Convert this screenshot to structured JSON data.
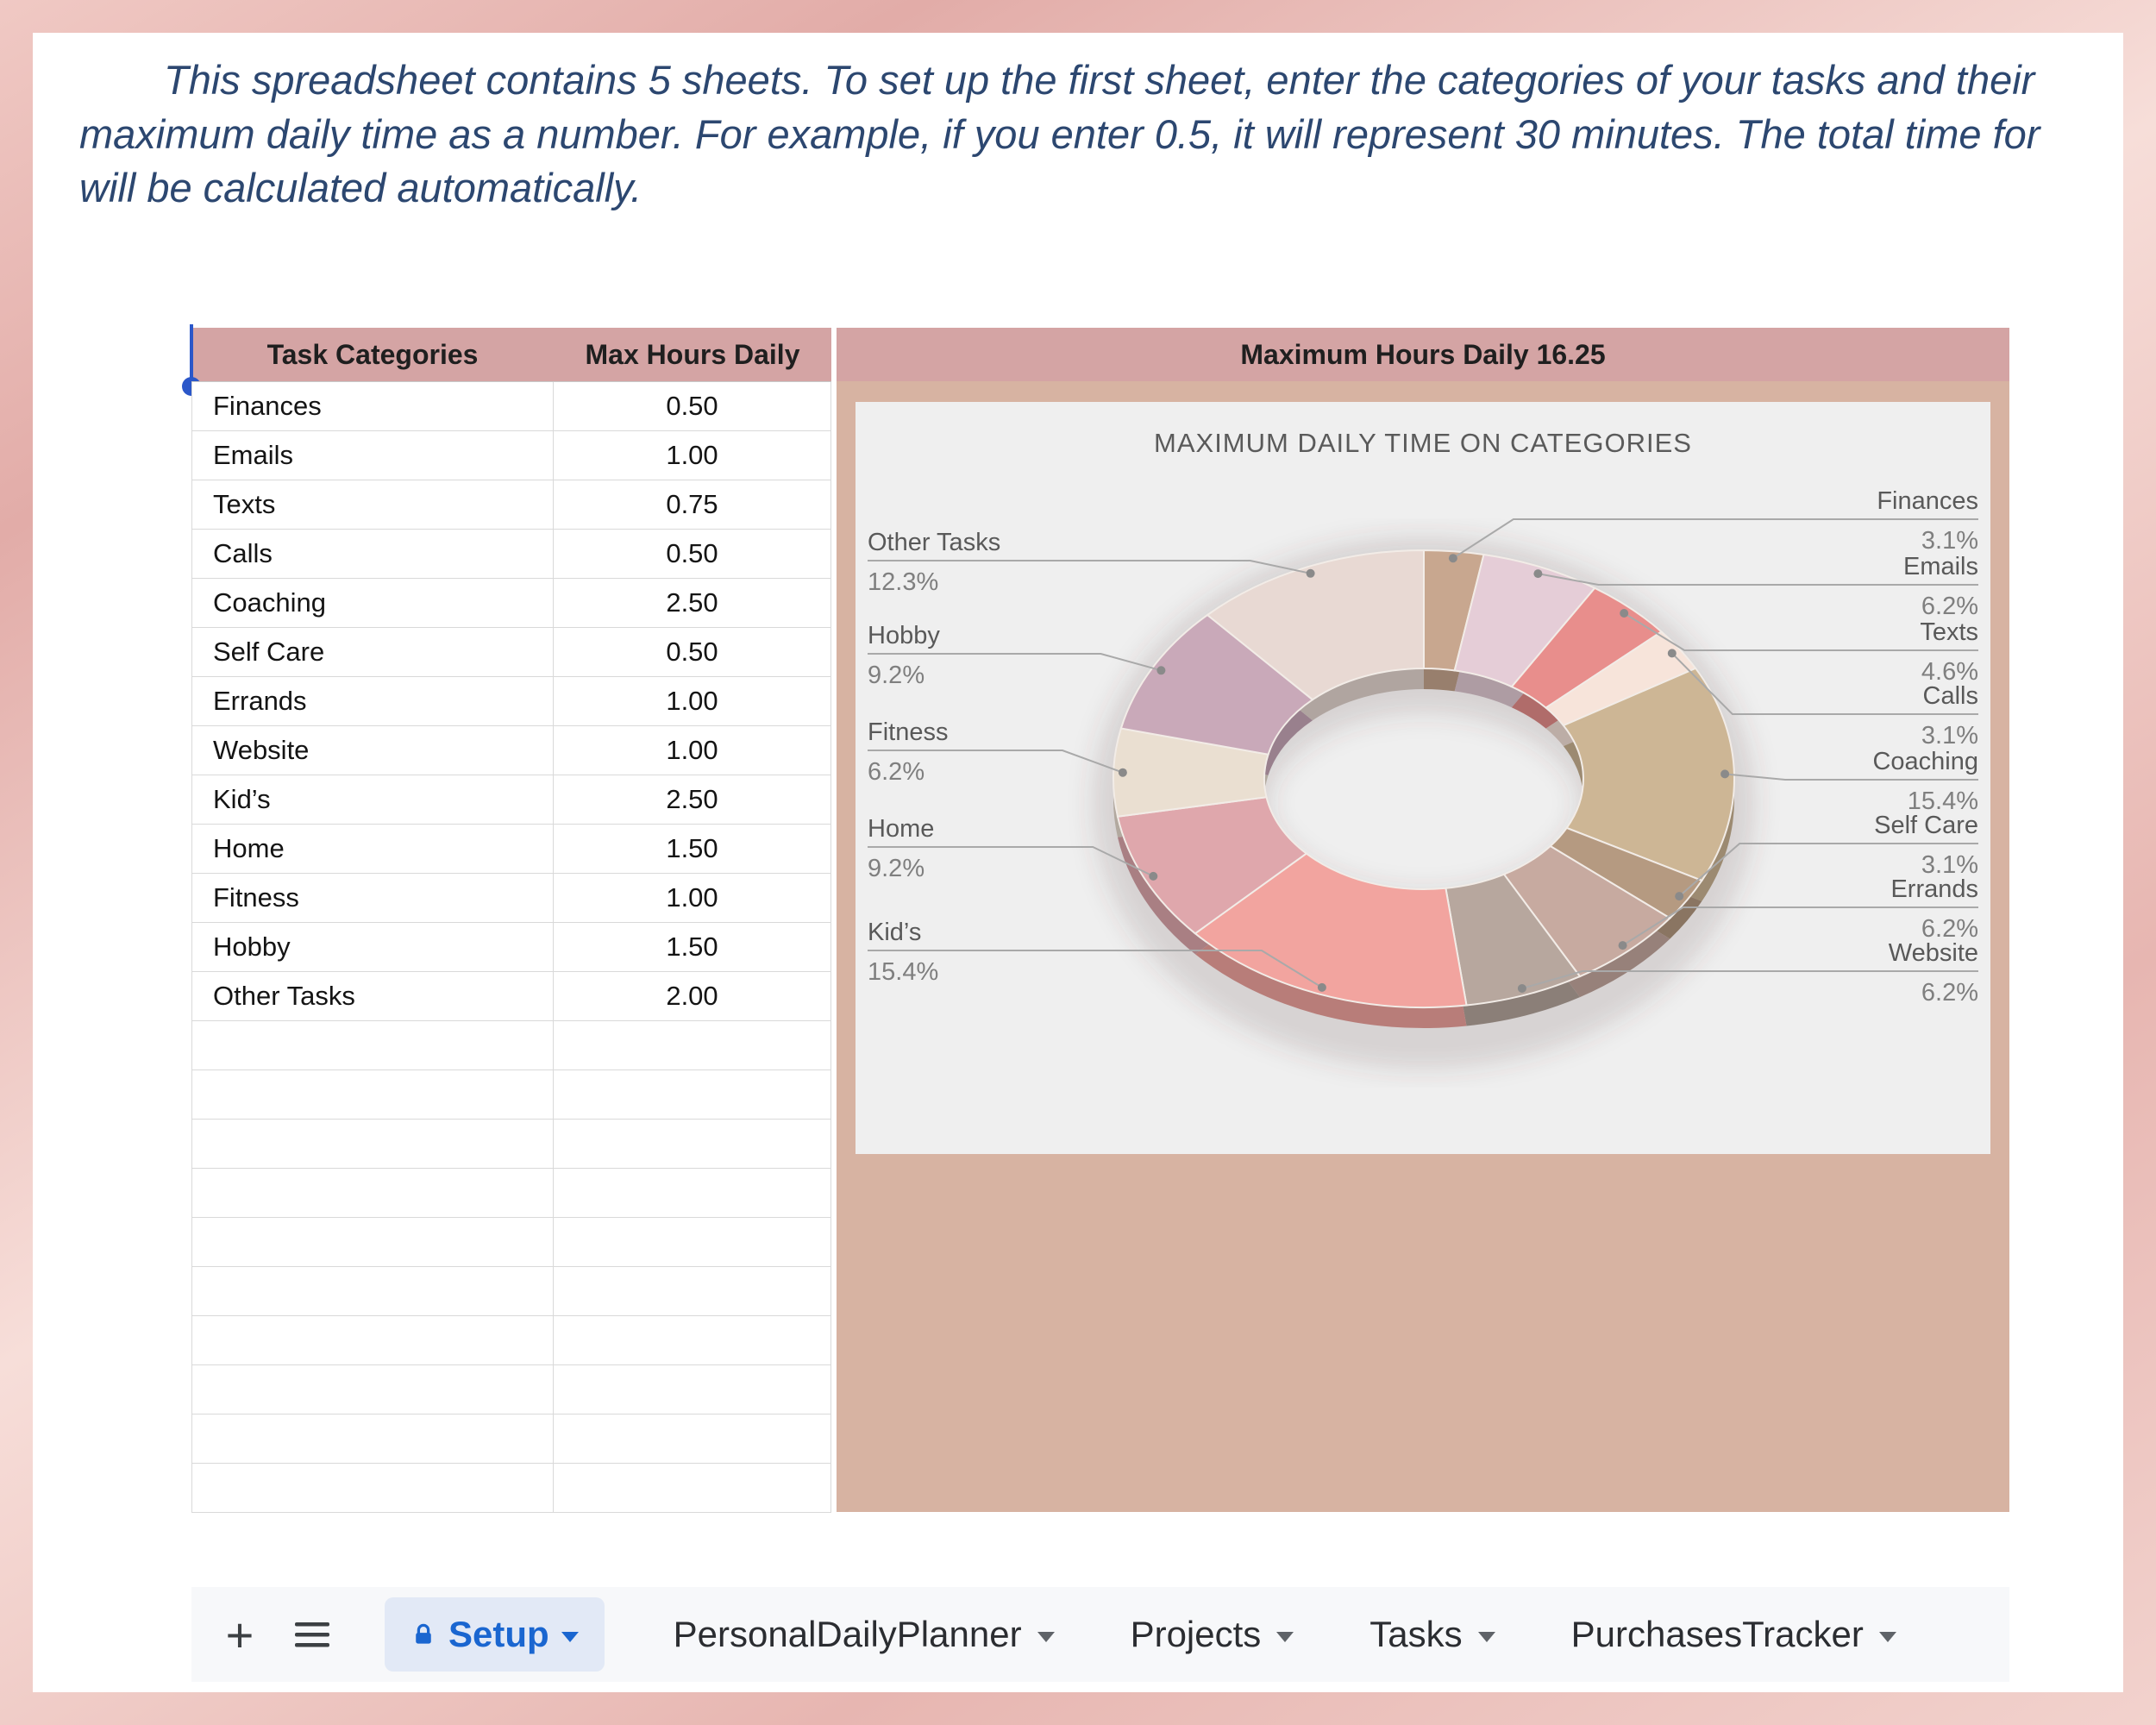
{
  "intro": {
    "text": "This spreadsheet contains 5 sheets. To set up the first sheet, enter the categories of your tasks and their maximum daily time as a number. For example, if you enter 0.5, it will represent 30 minutes. The total time for will be calculated automatically."
  },
  "table": {
    "headers": [
      "Task Categories",
      "Max Hours Daily"
    ],
    "rows": [
      {
        "category": "Finances",
        "hours": "0.50"
      },
      {
        "category": "Emails",
        "hours": "1.00"
      },
      {
        "category": "Texts",
        "hours": "0.75"
      },
      {
        "category": "Calls",
        "hours": "0.50"
      },
      {
        "category": "Coaching",
        "hours": "2.50"
      },
      {
        "category": "Self Care",
        "hours": "0.50"
      },
      {
        "category": "Errands",
        "hours": "1.00"
      },
      {
        "category": "Website",
        "hours": "1.00"
      },
      {
        "category": "Kid’s",
        "hours": "2.50"
      },
      {
        "category": "Home",
        "hours": "1.50"
      },
      {
        "category": "Fitness",
        "hours": "1.00"
      },
      {
        "category": "Hobby",
        "hours": "1.50"
      },
      {
        "category": "Other Tasks",
        "hours": "2.00"
      }
    ],
    "empty_rows": 10
  },
  "summary": {
    "header": "Maximum Hours Daily 16.25"
  },
  "chart_data": {
    "type": "pie",
    "donut": true,
    "title": "MAXIMUM DAILY TIME ON CATEGORIES",
    "categories": [
      "Finances",
      "Emails",
      "Texts",
      "Calls",
      "Coaching",
      "Self Care",
      "Errands",
      "Website",
      "Kid’s",
      "Home",
      "Fitness",
      "Hobby",
      "Other Tasks"
    ],
    "values_percent": [
      3.1,
      6.2,
      4.6,
      3.1,
      15.4,
      3.1,
      6.2,
      6.2,
      15.4,
      9.2,
      6.2,
      9.2,
      12.3
    ],
    "values_hours": [
      0.5,
      1.0,
      0.75,
      0.5,
      2.5,
      0.5,
      1.0,
      1.0,
      2.5,
      1.5,
      1.0,
      1.5,
      2.0
    ],
    "total_hours": 16.25,
    "colors": [
      "#c8a78f",
      "#e5cdd7",
      "#e88e8c",
      "#f7e4da",
      "#cdb695",
      "#b59a81",
      "#c7aaa0",
      "#b7a79e",
      "#f2a49f",
      "#dfa7ac",
      "#eadfd1",
      "#c9a9b9",
      "#e8d9d3"
    ],
    "legend_position": "callout-labels",
    "label_format": "{name} {pct}%"
  },
  "tabbar": {
    "add_glyph": "+",
    "tabs": [
      {
        "label": "Setup",
        "active": true,
        "locked": true
      },
      {
        "label": "PersonalDailyPlanner",
        "active": false,
        "locked": false
      },
      {
        "label": "Projects",
        "active": false,
        "locked": false
      },
      {
        "label": "Tasks",
        "active": false,
        "locked": false
      },
      {
        "label": "PurchasesTracker",
        "active": false,
        "locked": false
      }
    ]
  },
  "theme": {
    "frame_pink": "#e7b6b1",
    "header_bg": "#d4a4a4",
    "sheet_region_bg": "#d7b3a2",
    "chart_panel_bg": "#efefef",
    "accent_blue": "#1a66d0",
    "intro_text_color": "#2c4770"
  }
}
